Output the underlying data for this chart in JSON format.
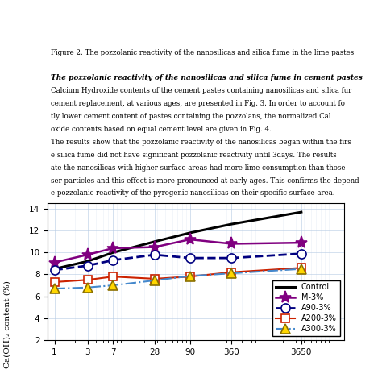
{
  "title": "",
  "xlabel": "",
  "ylabel": "",
  "chart_ylabel": "",
  "xlim_log": [
    0.8,
    15000
  ],
  "ylim": [
    2,
    14.5
  ],
  "yticks": [
    2,
    4,
    6,
    8,
    10,
    12,
    14
  ],
  "series": [
    {
      "label": "Control",
      "color": "#000000",
      "linestyle": "-",
      "linewidth": 2.2,
      "marker": null,
      "markersize": 0,
      "x": [
        1,
        3,
        7,
        28,
        90,
        360,
        3650
      ],
      "y": [
        8.5,
        9.2,
        10.0,
        11.0,
        11.8,
        12.6,
        13.7
      ]
    },
    {
      "label": "M-3%",
      "color": "#800080",
      "linestyle": "-",
      "linewidth": 1.8,
      "marker": "*",
      "markersize": 11,
      "markerfacecolor": "#800080",
      "markeredgecolor": "#800080",
      "x": [
        1,
        3,
        7,
        28,
        90,
        360,
        3650
      ],
      "y": [
        9.1,
        9.8,
        10.4,
        10.5,
        11.2,
        10.8,
        10.9
      ]
    },
    {
      "label": "A90-3%",
      "color": "#000080",
      "linestyle": "--",
      "linewidth": 2.0,
      "marker": "o",
      "markersize": 8,
      "markerfacecolor": "white",
      "markeredgecolor": "#000080",
      "x": [
        1,
        3,
        7,
        28,
        90,
        360,
        3650
      ],
      "y": [
        8.4,
        8.8,
        9.3,
        9.8,
        9.5,
        9.5,
        9.9
      ]
    },
    {
      "label": "A200-3%",
      "color": "#cc2200",
      "linestyle": "-",
      "linewidth": 1.5,
      "marker": "s",
      "markersize": 7,
      "markerfacecolor": "white",
      "markeredgecolor": "#cc2200",
      "x": [
        1,
        3,
        7,
        28,
        90,
        360,
        3650
      ],
      "y": [
        7.3,
        7.5,
        7.8,
        7.6,
        7.8,
        8.2,
        8.6
      ]
    },
    {
      "label": "A300-3%",
      "color": "#4488cc",
      "linestyle": "-.",
      "linewidth": 1.5,
      "marker": "^",
      "markersize": 8,
      "markerfacecolor": "#FFD700",
      "markeredgecolor": "#8B7000",
      "x": [
        1,
        3,
        7,
        28,
        90,
        360,
        3650
      ],
      "y": [
        6.7,
        6.8,
        7.0,
        7.45,
        7.85,
        8.1,
        8.5
      ]
    }
  ],
  "text_lines": [
    "Figure 2. The pozzolanic reactivity of the nanosilicas and silica fume in the lime pastes",
    "",
    "The pozzolanic reactivity of the nanosilicas and silica fume in cement pastes",
    "Calcium Hydroxide contents of the cement pastes containing nanosilicas and silica fur",
    "cement replacement, at various ages, are presented in Fig. 3. In order to account fo",
    "tly lower cement content of pastes containing the pozzolans, the normalized Cal",
    "oxide contents based on equal cement level are given in Fig. 4.",
    "The results show that the pozzolanic reactivity of the nanosilicas began within the firs",
    "e silica fume did not have significant pozzolanic reactivity until 3days. The results",
    "ate the nanosilicas with higher surface areas had more lime consumption than those",
    "ser particles and this effect is more pronounced at early ages. This confirms the depend",
    "e pozzolanic reactivity of the pyrogenic nanosilicas on their specific surface area."
  ],
  "legend_loc": "lower right",
  "background_color": "#ffffff",
  "grid_color": "#b8cce4",
  "grid_alpha": 0.7,
  "figure_facecolor": "#ffffff"
}
